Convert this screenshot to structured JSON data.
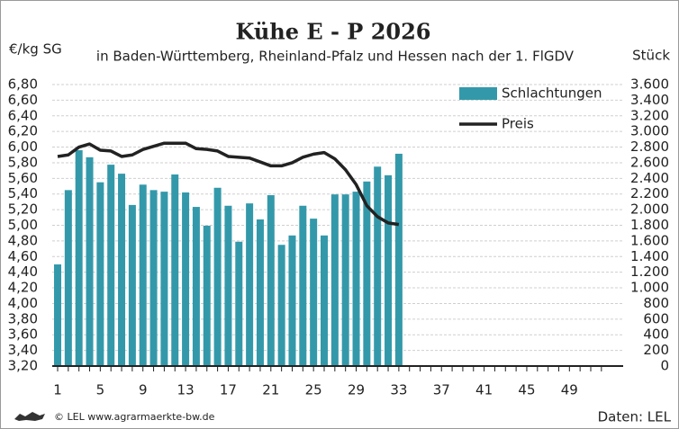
{
  "chart_data": {
    "type": "bar",
    "title": "Kühe E - P 2026",
    "subtitle": "in Baden-Württemberg, Rheinland-Pfalz und Hessen nach der 1. FlGDV",
    "y_label": "€/kg SG",
    "y2_label": "Stück",
    "source": "© LEL www.agrarmaerkte-bw.de",
    "credit": "Daten: LEL",
    "grid": true,
    "legend": "top-right",
    "categories": [
      1,
      null,
      null,
      null,
      5,
      null,
      null,
      null,
      9,
      null,
      null,
      null,
      13,
      null,
      null,
      null,
      17,
      null,
      null,
      null,
      21,
      null,
      null,
      null,
      25,
      null,
      null,
      null,
      29,
      null,
      null,
      null,
      33,
      null,
      null,
      null,
      37,
      null,
      null,
      null,
      41,
      null,
      null,
      null,
      45,
      null,
      null,
      null,
      49,
      null,
      null,
      null
    ],
    "series": [
      {
        "name": "Schlachtungen",
        "type": "bar",
        "axis": "y2",
        "color": "#3399aa",
        "values": [
          1300,
          2250,
          2760,
          2670,
          2350,
          2575,
          2460,
          2060,
          2320,
          2250,
          2230,
          2450,
          2220,
          2035,
          1795,
          2280,
          2050,
          1590,
          2080,
          1875,
          2185,
          1550,
          1670,
          2050,
          1885,
          1670,
          2195,
          2195,
          2230,
          2360,
          2550,
          2440,
          2715,
          null,
          null,
          null,
          null,
          null,
          null,
          null,
          null,
          null,
          null,
          null,
          null,
          null,
          null,
          null,
          null,
          null,
          null,
          null
        ]
      },
      {
        "name": "Preis",
        "type": "line",
        "color": "#222222",
        "values": [
          5.88,
          5.9,
          6.0,
          6.04,
          5.96,
          5.95,
          5.88,
          5.9,
          5.97,
          6.01,
          6.05,
          6.05,
          6.05,
          5.98,
          5.97,
          5.95,
          5.88,
          5.87,
          5.86,
          5.81,
          5.76,
          5.76,
          5.8,
          5.87,
          5.91,
          5.93,
          5.85,
          5.71,
          5.52,
          5.25,
          5.11,
          5.03,
          5.01,
          null,
          null,
          null,
          null,
          null,
          null,
          null,
          null,
          null,
          null,
          null,
          null,
          null,
          null,
          null,
          null,
          null,
          null,
          null
        ]
      }
    ],
    "ylim": [
      3.2,
      6.8
    ],
    "yticks": [
      {
        "value": 3.2,
        "label": "3,20"
      },
      {
        "value": 3.4,
        "label": "3,40"
      },
      {
        "value": 3.6,
        "label": "3,60"
      },
      {
        "value": 3.8,
        "label": "3,80"
      },
      {
        "value": 4.0,
        "label": "4,00"
      },
      {
        "value": 4.2,
        "label": "4,20"
      },
      {
        "value": 4.4,
        "label": "4,40"
      },
      {
        "value": 4.6,
        "label": "4,60"
      },
      {
        "value": 4.8,
        "label": "4,80"
      },
      {
        "value": 5.0,
        "label": "5,00"
      },
      {
        "value": 5.2,
        "label": "5,20"
      },
      {
        "value": 5.4,
        "label": "5,40"
      },
      {
        "value": 5.6,
        "label": "5,60"
      },
      {
        "value": 5.8,
        "label": "5,80"
      },
      {
        "value": 6.0,
        "label": "6,00"
      },
      {
        "value": 6.2,
        "label": "6,20"
      },
      {
        "value": 6.4,
        "label": "6,40"
      },
      {
        "value": 6.6,
        "label": "6,60"
      },
      {
        "value": 6.8,
        "label": "6,80"
      }
    ],
    "y2lim": [
      0,
      3600
    ],
    "y2ticks": [
      0,
      200,
      400,
      600,
      800,
      {
        "value": 1000,
        "label": "1.000"
      },
      {
        "value": 1200,
        "label": "1.200"
      },
      {
        "value": 1400,
        "label": "1.400"
      },
      {
        "value": 1600,
        "label": "1.600"
      },
      {
        "value": 1800,
        "label": "1.800"
      },
      {
        "value": 2000,
        "label": "2.000"
      },
      {
        "value": 2200,
        "label": "2.200"
      },
      {
        "value": 2400,
        "label": "2.400"
      },
      {
        "value": 2600,
        "label": "2.600"
      },
      {
        "value": 2800,
        "label": "2.800"
      },
      {
        "value": 3000,
        "label": "3.000"
      },
      {
        "value": 3200,
        "label": "3.200"
      },
      {
        "value": 3400,
        "label": "3.400"
      },
      {
        "value": 3600,
        "label": "3.600"
      }
    ]
  }
}
